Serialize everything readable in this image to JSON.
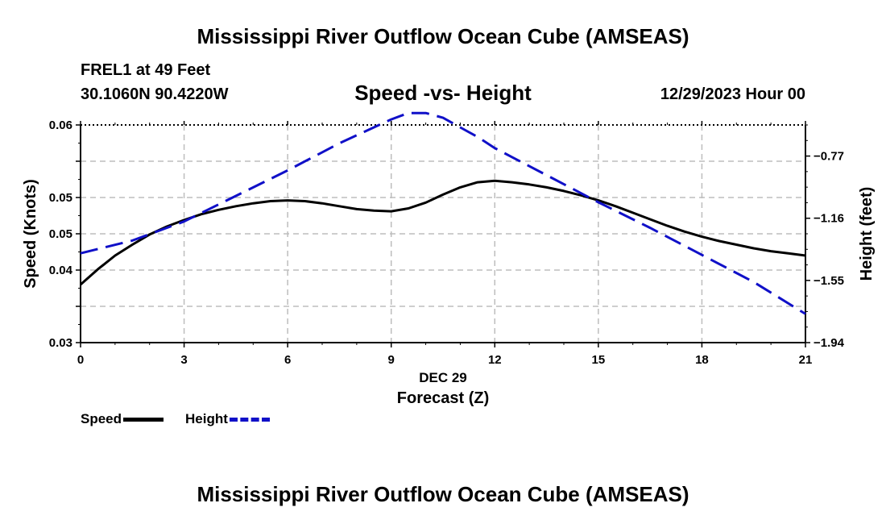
{
  "header": {
    "title": "Mississippi River Outflow Ocean Cube (AMSEAS)",
    "station": "FREL1 at 49 Feet",
    "coordinates": "30.1060N  90.4220W",
    "subtitle": "Speed -vs- Height",
    "datetime": "12/29/2023 Hour 00"
  },
  "footer": {
    "title": "Mississippi River Outflow Ocean Cube (AMSEAS)"
  },
  "chart_data": {
    "type": "line",
    "title": "Speed -vs- Height",
    "xlabel_date": "DEC 29",
    "xlabel": "Forecast (Z)",
    "ylabel": "Speed (Knots)",
    "y2label": "Height (feet)",
    "xlim": [
      0,
      21
    ],
    "ylim": [
      0.03,
      0.06
    ],
    "y2lim": [
      -1.94,
      -0.575
    ],
    "x_ticks": [
      0,
      3,
      6,
      9,
      12,
      15,
      18,
      21
    ],
    "x_tick_labels": [
      "0",
      "3",
      "6",
      "9",
      "12",
      "15",
      "18",
      "21"
    ],
    "y_ticks": [
      0.03,
      0.035,
      0.04,
      0.045,
      0.05,
      0.055,
      0.06
    ],
    "y_tick_labels": [
      "0.03",
      "",
      "0.04",
      "",
      "0.05",
      "",
      "0.06"
    ],
    "y_tick_labels_printed": [
      "0.03",
      "0.04",
      "0.05",
      "0.05",
      "0.06"
    ],
    "y2_ticks": [
      -1.94,
      -1.55,
      -1.16,
      -0.77
    ],
    "y2_tick_labels": [
      "−1.94",
      "−1.55",
      "−1.16",
      "−0.77"
    ],
    "grid": true,
    "series": [
      {
        "name": "Speed",
        "axis": "left",
        "color": "#000000",
        "dash": "solid",
        "x": [
          0,
          0.5,
          1,
          1.5,
          2,
          2.5,
          3,
          3.5,
          4,
          4.5,
          5,
          5.5,
          6,
          6.5,
          7,
          7.5,
          8,
          8.5,
          9,
          9.5,
          10,
          10.5,
          11,
          11.5,
          12,
          12.5,
          13,
          13.5,
          14,
          14.5,
          15,
          15.5,
          16,
          16.5,
          17,
          17.5,
          18,
          18.5,
          19,
          19.5,
          20,
          20.5,
          21
        ],
        "y": [
          0.038,
          0.0401,
          0.042,
          0.0435,
          0.0449,
          0.046,
          0.0469,
          0.0477,
          0.0483,
          0.0488,
          0.0492,
          0.0495,
          0.0496,
          0.0495,
          0.0492,
          0.0488,
          0.0484,
          0.0482,
          0.0481,
          0.0485,
          0.0493,
          0.0504,
          0.0514,
          0.0521,
          0.0523,
          0.0521,
          0.0518,
          0.0514,
          0.0509,
          0.0503,
          0.0496,
          0.0488,
          0.0479,
          0.047,
          0.0461,
          0.0453,
          0.0446,
          0.044,
          0.0435,
          0.043,
          0.0426,
          0.0423,
          0.042
        ]
      },
      {
        "name": "Height",
        "axis": "right",
        "color": "#1010c8",
        "dash": "dashed",
        "x": [
          0,
          1.5,
          3,
          4.5,
          6,
          7.5,
          9,
          9.5,
          10,
          10.5,
          11,
          11.5,
          12,
          13.5,
          15,
          16.5,
          18,
          19.5,
          21
        ],
        "y": [
          -1.38,
          -1.3,
          -1.18,
          -1.02,
          -0.86,
          -0.69,
          -0.54,
          -0.5,
          -0.5,
          -0.53,
          -0.59,
          -0.65,
          -0.72,
          -0.89,
          -1.06,
          -1.22,
          -1.39,
          -1.56,
          -1.76
        ]
      }
    ]
  },
  "legend": {
    "items": [
      {
        "label": "Speed",
        "color": "#000000",
        "dash": "solid"
      },
      {
        "label": "Height",
        "color": "#1010c8",
        "dash": "dashed"
      }
    ]
  }
}
